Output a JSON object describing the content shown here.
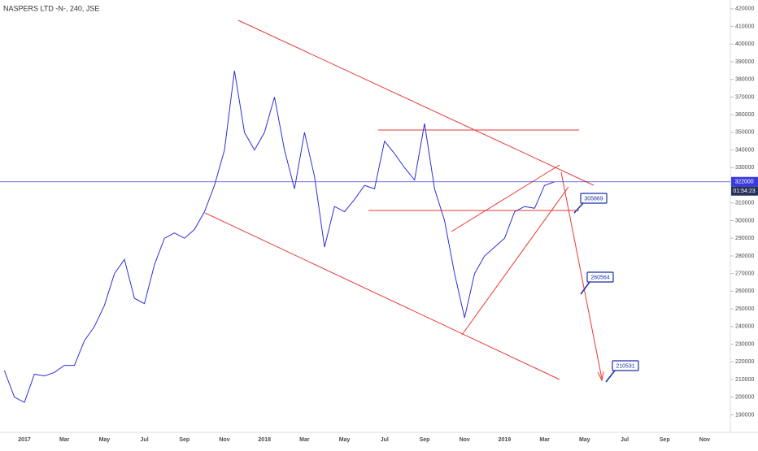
{
  "chart_data": {
    "type": "line",
    "title": "NASPERS LTD -N-, 240, JSE",
    "categories": [
      null,
      null,
      "2017",
      null,
      null,
      null,
      "Mar",
      null,
      null,
      null,
      "May",
      null,
      null,
      null,
      "Jul",
      null,
      null,
      null,
      "Sep",
      null,
      null,
      null,
      "Nov",
      null,
      null,
      null,
      "2018",
      null,
      null,
      null,
      "Mar",
      null,
      null,
      null,
      "May",
      null,
      null,
      null,
      "Jul",
      null,
      null,
      null,
      "Sep",
      null,
      null,
      null,
      "Nov",
      null,
      null,
      null,
      "2019",
      null,
      null,
      null,
      "Mar",
      null,
      null,
      null,
      "May",
      null,
      null,
      null,
      "Jul",
      null,
      null,
      null,
      "Sep",
      null,
      null,
      null,
      "Nov"
    ],
    "series": [
      {
        "color": "#2f2fd8",
        "values": [
          215000,
          200000,
          197000,
          213000,
          212000,
          214000,
          218000,
          218000,
          232000,
          240000,
          252000,
          270000,
          278000,
          256000,
          253000,
          275000,
          290000,
          293000,
          290000,
          295000,
          305000,
          320000,
          340000,
          385000,
          350000,
          340000,
          350000,
          370000,
          340000,
          318000,
          350000,
          325000,
          285000,
          308000,
          305000,
          312000,
          320000,
          318000,
          345000,
          338000,
          330000,
          323000,
          355000,
          318000,
          300000,
          270000,
          245000,
          270000,
          280000,
          285000,
          290000,
          305000,
          308000,
          307000,
          320000,
          322000,
          null,
          null,
          null,
          null,
          null,
          null,
          null,
          null,
          null,
          null,
          null,
          null,
          null,
          null,
          null
        ]
      }
    ],
    "ylim": [
      175000,
      425000
    ],
    "yticks": [
      190000,
      200000,
      210000,
      220000,
      230000,
      240000,
      250000,
      260000,
      270000,
      280000,
      290000,
      300000,
      310000,
      320000,
      330000,
      340000,
      350000,
      360000,
      370000,
      380000,
      390000,
      400000,
      410000,
      420000
    ],
    "current_price": 322000,
    "countdown": "01:54:23",
    "annotations": [
      "305869",
      "260564",
      "210531"
    ]
  }
}
